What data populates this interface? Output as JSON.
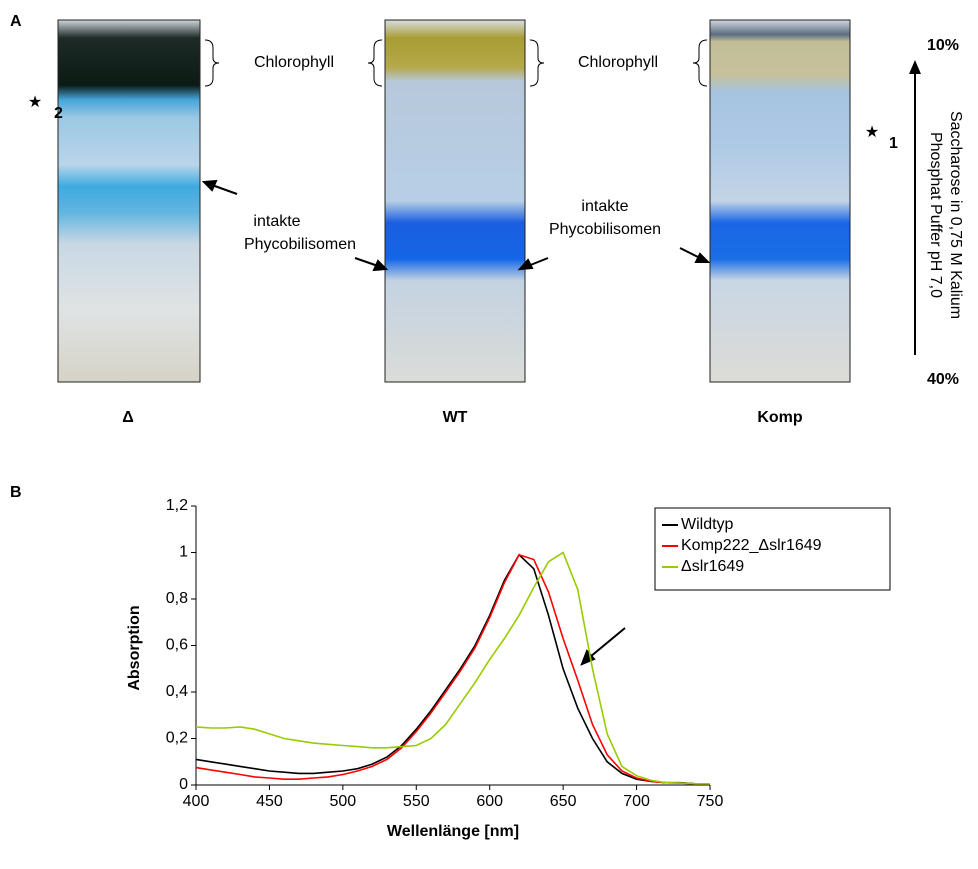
{
  "panel_a": {
    "label": "A",
    "chlorophyll_left": "Chlorophyll",
    "chlorophyll_right": "Chlorophyll",
    "intact_left": [
      "intakte",
      "Phycobilisomen"
    ],
    "intact_right": [
      "intakte",
      "Phycobilisomen"
    ],
    "star_left_sub": "2",
    "star_right_sub": "1",
    "tubes": [
      "Δ",
      "WT",
      "Komp"
    ],
    "gradient_top": "10%",
    "gradient_bottom": "40%",
    "gradient_label": [
      "Saccharose in 0,75 M Kalium",
      "Phosphat Puffer pH 7,0"
    ]
  },
  "panel_b": {
    "label": "B"
  },
  "chart_data": {
    "type": "line",
    "x_label": "Wellenlänge [nm]",
    "y_label": "Absorption",
    "x": [
      400,
      410,
      420,
      430,
      440,
      450,
      460,
      470,
      480,
      490,
      500,
      510,
      520,
      530,
      540,
      550,
      560,
      570,
      580,
      590,
      600,
      610,
      620,
      630,
      640,
      650,
      660,
      670,
      680,
      690,
      700,
      710,
      720,
      730,
      740,
      750
    ],
    "series": [
      {
        "name": "Wildtyp",
        "color": "#000000",
        "values": [
          0.11,
          0.1,
          0.09,
          0.08,
          0.07,
          0.06,
          0.055,
          0.05,
          0.05,
          0.055,
          0.06,
          0.07,
          0.09,
          0.12,
          0.17,
          0.24,
          0.32,
          0.41,
          0.5,
          0.6,
          0.73,
          0.88,
          0.99,
          0.93,
          0.73,
          0.5,
          0.33,
          0.2,
          0.1,
          0.05,
          0.025,
          0.015,
          0.01,
          0.01,
          0.005,
          0.005
        ]
      },
      {
        "name": "Komp222_Δslr1649",
        "color": "#ff0000",
        "values": [
          0.075,
          0.065,
          0.055,
          0.045,
          0.035,
          0.03,
          0.025,
          0.025,
          0.03,
          0.035,
          0.045,
          0.06,
          0.08,
          0.11,
          0.16,
          0.23,
          0.31,
          0.4,
          0.49,
          0.59,
          0.72,
          0.87,
          0.99,
          0.97,
          0.83,
          0.63,
          0.45,
          0.26,
          0.13,
          0.06,
          0.03,
          0.015,
          0.01,
          0.008,
          0.005,
          0.005
        ]
      },
      {
        "name": "Δslr1649",
        "color": "#99cc00",
        "values": [
          0.25,
          0.245,
          0.245,
          0.25,
          0.24,
          0.22,
          0.2,
          0.19,
          0.18,
          0.175,
          0.17,
          0.165,
          0.16,
          0.16,
          0.165,
          0.17,
          0.2,
          0.26,
          0.35,
          0.44,
          0.54,
          0.63,
          0.73,
          0.85,
          0.96,
          1.0,
          0.84,
          0.5,
          0.22,
          0.08,
          0.04,
          0.02,
          0.01,
          0.008,
          0.005,
          0.005
        ]
      }
    ],
    "xlim": [
      400,
      750
    ],
    "ylim": [
      0,
      1.2
    ],
    "xticks": [
      400,
      450,
      500,
      550,
      600,
      650,
      700,
      750
    ],
    "yticks": [
      0,
      {
        "value": 0.2,
        "label": "0,2"
      },
      {
        "value": 0.4,
        "label": "0,4"
      },
      {
        "value": 0.6,
        "label": "0,6"
      },
      {
        "value": 0.8,
        "label": "0,8"
      },
      1,
      {
        "value": 1.2,
        "label": "1,2"
      }
    ],
    "legend": "upper right"
  }
}
